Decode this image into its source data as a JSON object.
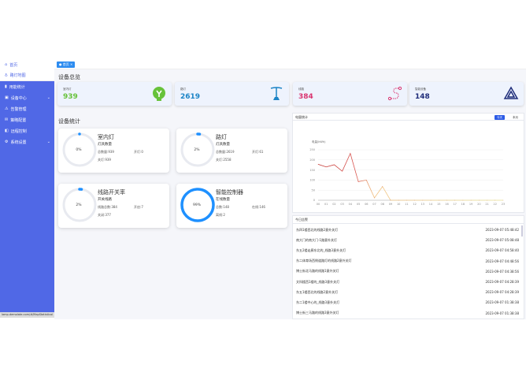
{
  "sidebar": {
    "items": [
      {
        "label": "首页",
        "icon": "home-icon"
      },
      {
        "label": "路灯地图",
        "icon": "map-icon"
      },
      {
        "label": "用能统计",
        "icon": "bar-chart-icon"
      },
      {
        "label": "设备中心",
        "icon": "device-icon"
      },
      {
        "label": "告警管理",
        "icon": "alarm-icon"
      },
      {
        "label": "策略配置",
        "icon": "strategy-icon"
      },
      {
        "label": "远程控制",
        "icon": "remote-icon"
      },
      {
        "label": "系统设置",
        "icon": "settings-icon"
      }
    ]
  },
  "status_url": "lamp.demolate.com/#/MapStatistical",
  "tab": {
    "label": "首页",
    "close": "×"
  },
  "overview": {
    "title": "设备总览",
    "cards": [
      {
        "label": "室内灯",
        "value": "939",
        "color": "#67c23a"
      },
      {
        "label": "路灯",
        "value": "2619",
        "color": "#1c84c6"
      },
      {
        "label": "线路",
        "value": "384",
        "color": "#d9346f"
      },
      {
        "label": "智能设备",
        "value": "148",
        "color": "#1f2d7a"
      }
    ]
  },
  "stats": {
    "title": "设备统计",
    "cards": [
      {
        "percent_label": "0%",
        "percent": 0,
        "title": "室内灯",
        "sub": "灯具数量",
        "a": "总数量:939",
        "b": "开灯:0",
        "c": "关灯:939"
      },
      {
        "percent_label": "2%",
        "percent": 2,
        "title": "路灯",
        "sub": "灯具数量",
        "a": "总数量:2619",
        "b": "开灯:61",
        "c": "关灯:2558"
      },
      {
        "percent_label": "2%",
        "percent": 2,
        "title": "线路开关率",
        "sub": "开关线路",
        "a": "线路总数:384",
        "b": "开启:7",
        "c": "关闭:377"
      },
      {
        "percent_label": "99%",
        "percent": 99,
        "title": "智能控制器",
        "sub": "在线数量",
        "a": "总数:148",
        "b": "在线:146",
        "c": "离线:2"
      }
    ]
  },
  "chart_panel": {
    "title": "电量统计",
    "btn_today": "今天",
    "btn_month": "本月"
  },
  "chart_data": {
    "type": "line",
    "ylabel": "电量(kWh)",
    "ylim": [
      0,
      250
    ],
    "yticks": [
      0,
      50,
      100,
      150,
      200,
      250
    ],
    "categories": [
      "00",
      "01",
      "02",
      "03",
      "04",
      "05",
      "06",
      "07",
      "08",
      "09",
      "10",
      "11",
      "12",
      "13",
      "14",
      "15",
      "16",
      "17",
      "18",
      "19",
      "20",
      "21",
      "22",
      "23"
    ],
    "values": [
      178,
      165,
      176,
      144,
      232,
      92,
      100,
      12,
      68,
      0,
      0,
      0,
      0,
      0,
      0,
      0,
      0,
      0,
      0,
      0,
      0,
      0,
      0,
      0
    ],
    "grid": true
  },
  "alarms": {
    "title": "今日告警",
    "rows": [
      {
        "text": "东四1楼西北的线路2意外关灯",
        "time": "2023-09-07 05:48:42"
      },
      {
        "text": "南大门的南大门-1路意外关灯",
        "time": "2023-09-07 05:08:48"
      },
      {
        "text": "东五2楼走廊东北的_线路3意外关灯",
        "time": "2023-09-07 04:58:40"
      },
      {
        "text": "东二体育场西侧道路灯的线路2意外关灯",
        "time": "2023-09-07 04:48:56"
      },
      {
        "text": "博士街北马路的线路1意外关灯",
        "time": "2023-09-07 04:38:56"
      },
      {
        "text": "文科楼西1楼的_线路3意外关灯",
        "time": "2023-09-07 04:28:39"
      },
      {
        "text": "东五1楼西北的线路2意外关灯",
        "time": "2023-09-07 04:28:39"
      },
      {
        "text": "东二1楼中心的_线路3意外关灯",
        "time": "2023-09-07 01:38:38"
      },
      {
        "text": "博士街三马路的线路3意外关灯",
        "time": "2023-09-07 01:38:38"
      }
    ]
  }
}
